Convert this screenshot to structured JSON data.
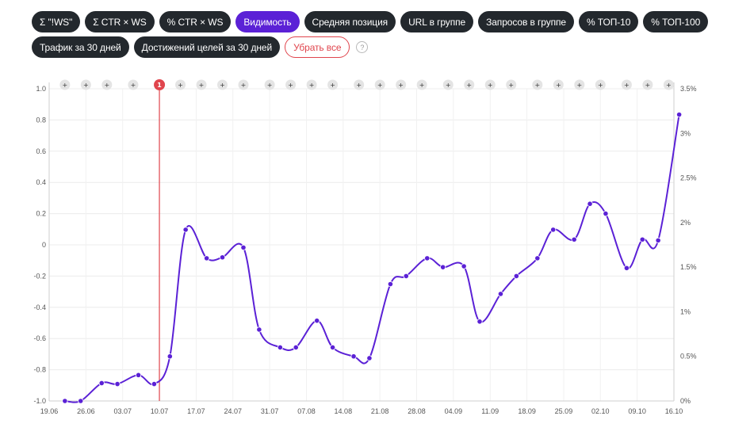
{
  "filters": [
    {
      "label": "Σ \"!WS\"",
      "active": false
    },
    {
      "label": "Σ CTR × WS",
      "active": false
    },
    {
      "label": "% CTR × WS",
      "active": false
    },
    {
      "label": "Видимость",
      "active": true
    },
    {
      "label": "Средняя позиция",
      "active": false
    },
    {
      "label": "URL в группе",
      "active": false
    },
    {
      "label": "Запросов в группе",
      "active": false
    },
    {
      "label": "% ТОП-10",
      "active": false
    },
    {
      "label": "% ТОП-100",
      "active": false
    },
    {
      "label": "Трафик за 30 дней",
      "active": false
    },
    {
      "label": "Достижений целей за 30 дней",
      "active": false
    }
  ],
  "clear_label": "Убрать все",
  "help_label": "?",
  "colors": {
    "line": "#5b21d6",
    "event": "#e0454d",
    "active_pill": "#5b21d6",
    "pill": "#23282d"
  },
  "chart_data": {
    "type": "line",
    "x_labels": [
      "19.06",
      "26.06",
      "03.07",
      "10.07",
      "17.07",
      "24.07",
      "31.07",
      "07.08",
      "14.08",
      "21.08",
      "28.08",
      "04.09",
      "11.09",
      "18.09",
      "25.09",
      "02.10",
      "09.10",
      "16.10"
    ],
    "x_start": "19.06",
    "x_end": "16.10",
    "y_left": {
      "ticks": [
        "1.0",
        "0.8",
        "0.6",
        "0.4",
        "0.2",
        "0",
        "-0.2",
        "-0.4",
        "-0.6",
        "-0.8",
        "-1.0"
      ],
      "range": [
        -1.0,
        1.0
      ]
    },
    "y_right": {
      "ticks": [
        "3.5%",
        "3%",
        "2.5%",
        "2%",
        "1.5%",
        "1%",
        "0.5%",
        "0%"
      ],
      "range": [
        0,
        3.5
      ],
      "unit": "%"
    },
    "series": [
      {
        "values_percent": [
          {
            "date": "22.06",
            "value": 0.0
          },
          {
            "date": "25.06",
            "value": 0.0
          },
          {
            "date": "29.06",
            "value": 0.2
          },
          {
            "date": "02.07",
            "value": 0.19
          },
          {
            "date": "06.07",
            "value": 0.29
          },
          {
            "date": "09.07",
            "value": 0.19
          },
          {
            "date": "12.07",
            "value": 0.5
          },
          {
            "date": "15.07",
            "value": 1.92
          },
          {
            "date": "19.07",
            "value": 1.6
          },
          {
            "date": "22.07",
            "value": 1.61
          },
          {
            "date": "26.07",
            "value": 1.72
          },
          {
            "date": "29.07",
            "value": 0.8
          },
          {
            "date": "02.08",
            "value": 0.6
          },
          {
            "date": "05.08",
            "value": 0.6
          },
          {
            "date": "09.08",
            "value": 0.9
          },
          {
            "date": "12.08",
            "value": 0.6
          },
          {
            "date": "16.08",
            "value": 0.5
          },
          {
            "date": "19.08",
            "value": 0.48
          },
          {
            "date": "23.08",
            "value": 1.31
          },
          {
            "date": "26.08",
            "value": 1.4
          },
          {
            "date": "30.08",
            "value": 1.6
          },
          {
            "date": "02.09",
            "value": 1.5
          },
          {
            "date": "06.09",
            "value": 1.51
          },
          {
            "date": "09.09",
            "value": 0.89
          },
          {
            "date": "13.09",
            "value": 1.2
          },
          {
            "date": "16.09",
            "value": 1.4
          },
          {
            "date": "20.09",
            "value": 1.6
          },
          {
            "date": "23.09",
            "value": 1.92
          },
          {
            "date": "27.09",
            "value": 1.81
          },
          {
            "date": "30.09",
            "value": 2.21
          },
          {
            "date": "03.10",
            "value": 2.1
          },
          {
            "date": "07.10",
            "value": 1.49
          },
          {
            "date": "10.10",
            "value": 1.81
          },
          {
            "date": "13.10",
            "value": 1.8
          },
          {
            "date": "17.10",
            "value": 3.21
          }
        ]
      }
    ],
    "event_markers": [
      {
        "date": "22.06",
        "label": "+"
      },
      {
        "date": "26.06",
        "label": "+"
      },
      {
        "date": "30.06",
        "label": "+"
      },
      {
        "date": "05.07",
        "label": "+"
      },
      {
        "date": "10.07",
        "label": "1",
        "highlight": true
      },
      {
        "date": "14.07",
        "label": "+"
      },
      {
        "date": "18.07",
        "label": "+"
      },
      {
        "date": "22.07",
        "label": "+"
      },
      {
        "date": "26.07",
        "label": "+"
      },
      {
        "date": "31.07",
        "label": "+"
      },
      {
        "date": "04.08",
        "label": "+"
      },
      {
        "date": "08.08",
        "label": "+"
      },
      {
        "date": "12.08",
        "label": "+"
      },
      {
        "date": "17.08",
        "label": "+"
      },
      {
        "date": "21.08",
        "label": "+"
      },
      {
        "date": "25.08",
        "label": "+"
      },
      {
        "date": "29.08",
        "label": "+"
      },
      {
        "date": "03.09",
        "label": "+"
      },
      {
        "date": "07.09",
        "label": "+"
      },
      {
        "date": "11.09",
        "label": "+"
      },
      {
        "date": "15.09",
        "label": "+"
      },
      {
        "date": "20.09",
        "label": "+"
      },
      {
        "date": "24.09",
        "label": "+"
      },
      {
        "date": "28.09",
        "label": "+"
      },
      {
        "date": "02.10",
        "label": "+"
      },
      {
        "date": "07.10",
        "label": "+"
      },
      {
        "date": "11.10",
        "label": "+"
      },
      {
        "date": "15.10",
        "label": "+"
      }
    ],
    "grid": true
  }
}
